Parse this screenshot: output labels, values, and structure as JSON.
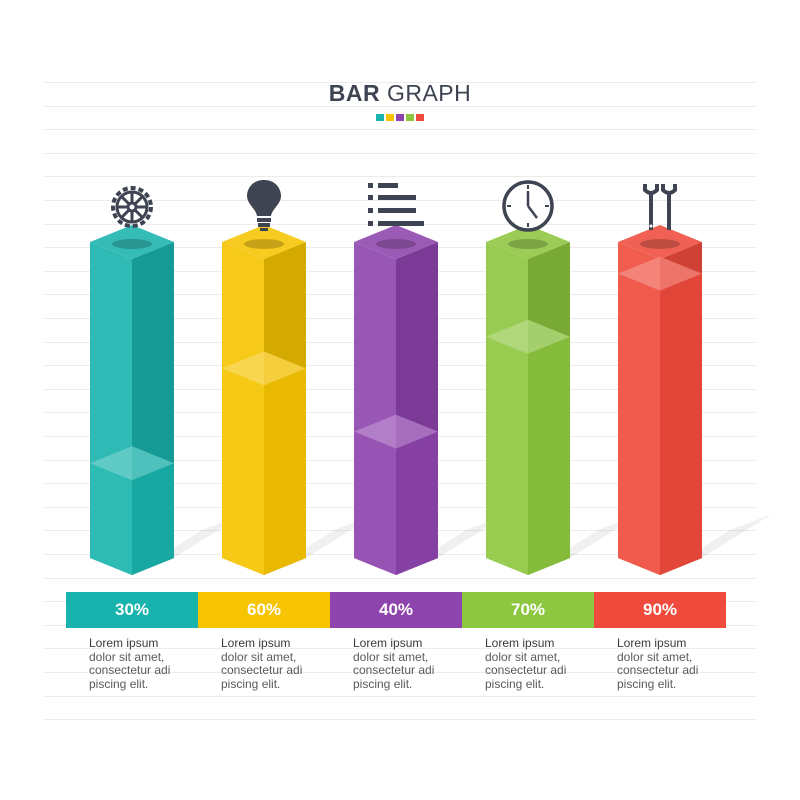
{
  "title_bold": "BAR",
  "title_rest": "GRAPH",
  "dot_colors": [
    "#19b3ad",
    "#f6c400",
    "#8e44ad",
    "#8dc63f",
    "#ef4b3c"
  ],
  "chart_data": {
    "type": "bar",
    "categories": [
      "gear-icon",
      "bulb-icon",
      "list-icon",
      "clock-icon",
      "wrench-icon"
    ],
    "values": [
      30,
      60,
      40,
      70,
      90
    ],
    "value_labels": [
      "30%",
      "60%",
      "40%",
      "70%",
      "90%"
    ],
    "ylim": [
      0,
      100
    ],
    "title": "BAR GRAPH",
    "colors": [
      "#19b3ad",
      "#f6c400",
      "#8e44ad",
      "#8dc63f",
      "#ef4b3c"
    ]
  },
  "items": [
    {
      "label": "30%",
      "icon": "gear-icon",
      "color": "#19b3ad",
      "desc": [
        "Lorem ipsum",
        "dolor sit amet,",
        "consectetur adi",
        "piscing elit."
      ]
    },
    {
      "label": "60%",
      "icon": "bulb-icon",
      "color": "#f6c400",
      "desc": [
        "Lorem ipsum",
        "dolor sit amet,",
        "consectetur adi",
        "piscing elit."
      ]
    },
    {
      "label": "40%",
      "icon": "list-icon",
      "color": "#8e44ad",
      "desc": [
        "Lorem ipsum",
        "dolor sit amet,",
        "consectetur adi",
        "piscing elit."
      ]
    },
    {
      "label": "70%",
      "icon": "clock-icon",
      "color": "#8dc63f",
      "desc": [
        "Lorem ipsum",
        "dolor sit amet,",
        "consectetur adi",
        "piscing elit."
      ]
    },
    {
      "label": "90%",
      "icon": "wrench-icon",
      "color": "#ef4b3c",
      "desc": [
        "Lorem ipsum",
        "dolor sit amet,",
        "consectetur adi",
        "piscing elit."
      ]
    }
  ]
}
